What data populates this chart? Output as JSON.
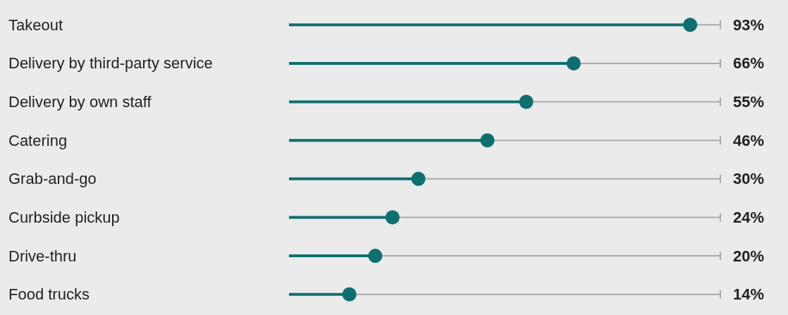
{
  "chart_data": {
    "type": "lollipop",
    "orientation": "horizontal",
    "marker": "circle",
    "categories": [
      "Takeout",
      "Delivery by third-party service",
      "Delivery by own staff",
      "Catering",
      "Grab-and-go",
      "Curbside pickup",
      "Drive-thru",
      "Food trucks"
    ],
    "values": [
      93,
      66,
      55,
      46,
      30,
      24,
      20,
      14
    ],
    "value_labels": [
      "93%",
      "66%",
      "55%",
      "46%",
      "30%",
      "24%",
      "20%",
      "14%"
    ],
    "color": "#0e6f70",
    "xlim": [
      0,
      100
    ],
    "grid": "y"
  }
}
